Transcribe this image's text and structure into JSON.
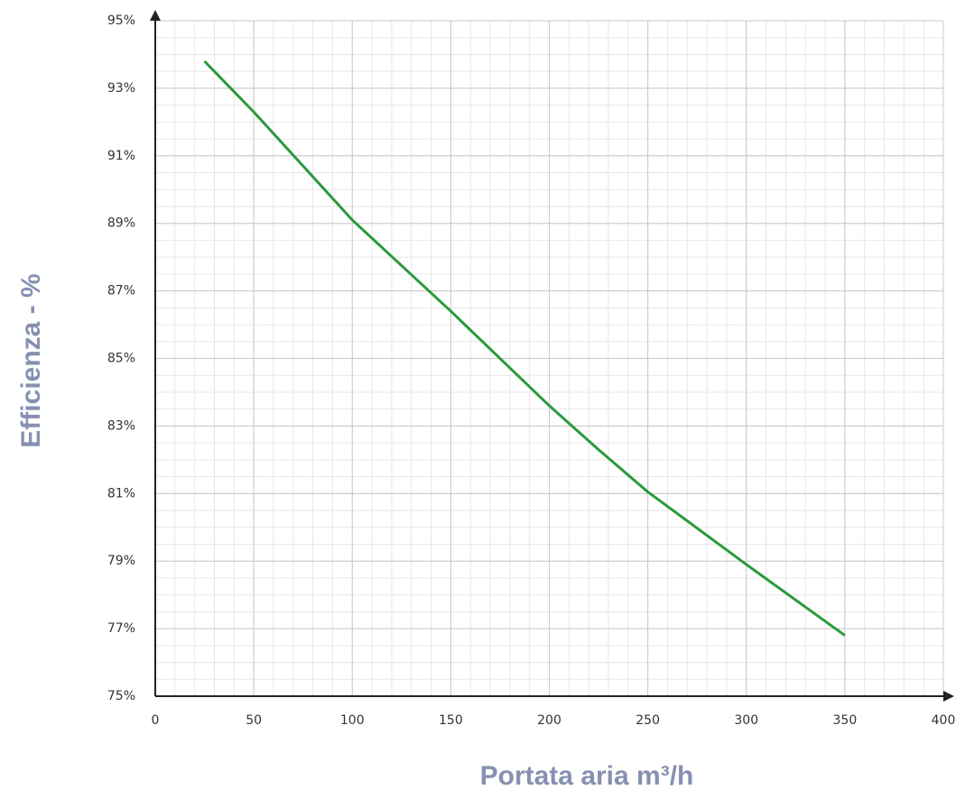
{
  "chart_data": {
    "type": "line",
    "xlabel": "Portata aria m³/h",
    "ylabel": "Efficienza - %",
    "x": [
      25,
      50,
      100,
      150,
      200,
      225,
      250,
      300,
      350
    ],
    "series": [
      {
        "name": null,
        "color": "#2a9a3c",
        "values": [
          93.8,
          92.3,
          89.1,
          86.4,
          83.6,
          82.3,
          81.05,
          78.9,
          76.8
        ]
      }
    ],
    "xlim": [
      0,
      400
    ],
    "xticks": [
      0,
      50,
      100,
      150,
      200,
      250,
      300,
      350,
      400
    ],
    "ylim": [
      75,
      95
    ],
    "yticks": [
      {
        "value": 75,
        "label": "75%"
      },
      {
        "value": 77,
        "label": "77%"
      },
      {
        "value": 79,
        "label": "79%"
      },
      {
        "value": 81,
        "label": "81%"
      },
      {
        "value": 83,
        "label": "83%"
      },
      {
        "value": 85,
        "label": "85%"
      },
      {
        "value": 87,
        "label": "87%"
      },
      {
        "value": 89,
        "label": "89%"
      },
      {
        "value": 91,
        "label": "91%"
      },
      {
        "value": 93,
        "label": "93%"
      },
      {
        "value": 95,
        "label": "95%"
      }
    ],
    "grid": true
  }
}
